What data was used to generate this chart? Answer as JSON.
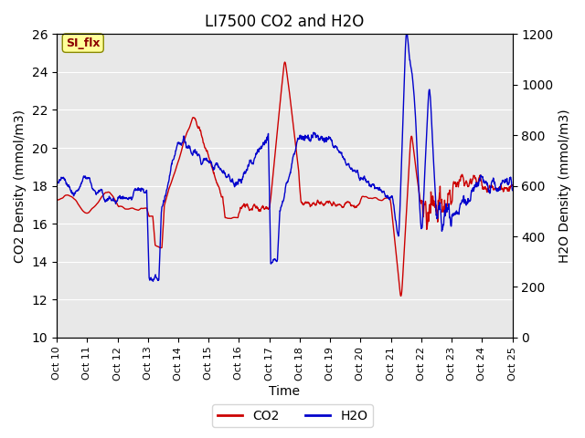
{
  "title": "LI7500 CO2 and H2O",
  "xlabel": "Time",
  "ylabel_left": "CO2 Density (mmol/m3)",
  "ylabel_right": "H2O Density (mmol/m3)",
  "ylim_left": [
    10,
    26
  ],
  "ylim_right": [
    0,
    1200
  ],
  "yticks_left": [
    10,
    12,
    14,
    16,
    18,
    20,
    22,
    24,
    26
  ],
  "yticks_right": [
    0,
    200,
    400,
    600,
    800,
    1000,
    1200
  ],
  "xtick_labels": [
    "Oct 10",
    "Oct 11",
    "Oct 12",
    "Oct 13",
    "Oct 14",
    "Oct 15",
    "Oct 16",
    "Oct 17",
    "Oct 18",
    "Oct 19",
    "Oct 20",
    "Oct 21",
    "Oct 22",
    "Oct 23",
    "Oct 24",
    "Oct 25"
  ],
  "co2_color": "#cc0000",
  "h2o_color": "#0000cc",
  "legend_label_co2": "CO2",
  "legend_label_h2o": "H2O",
  "background_color": "#e8e8e8",
  "annotation_text": "SI_flx",
  "annotation_bg": "#ffff99",
  "annotation_border": "#888800",
  "line_width": 1.0,
  "grid_color": "white",
  "n_points": 1500
}
